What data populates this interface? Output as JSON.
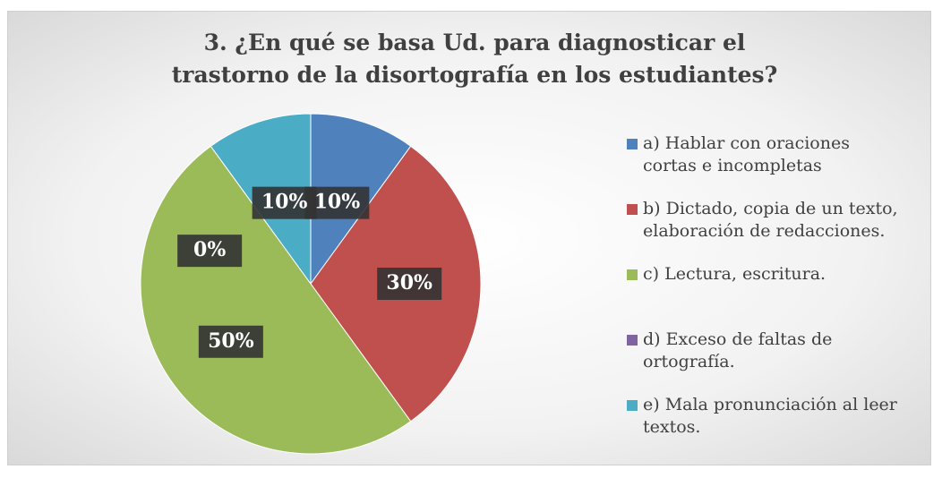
{
  "chart_data": {
    "type": "pie",
    "title": "3.  ¿En qué se basa Ud. para diagnosticar el trastorno de la disortografía en los estudiantes?",
    "categories": [
      "a) Hablar con oraciones cortas e incompletas",
      "b) Dictado, copia de un texto, elaboración de redacciones.",
      "c) Lectura, escritura.",
      "d) Exceso de faltas de ortografía.",
      "e) Mala pronunciación al leer textos."
    ],
    "values": [
      10,
      30,
      50,
      0,
      10
    ],
    "value_labels": [
      "10%",
      "30%",
      "50%",
      "0%",
      "10%"
    ],
    "colors": [
      "#4f81bd",
      "#c0504d",
      "#9bbb59",
      "#8064a2",
      "#4bacc6"
    ],
    "legend": "right"
  }
}
